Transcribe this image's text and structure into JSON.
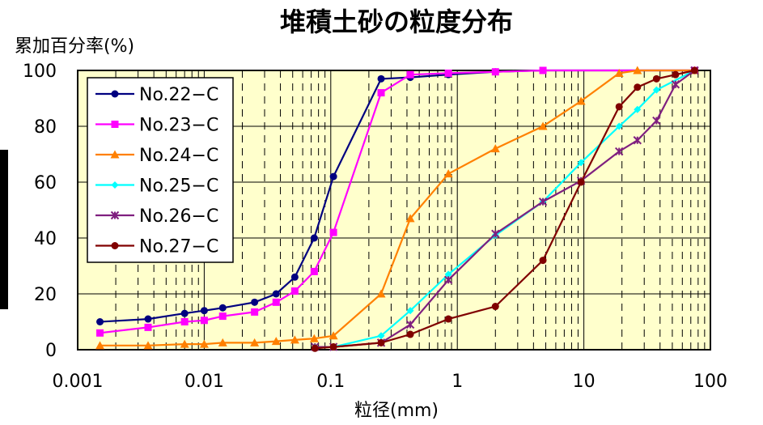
{
  "chart_data": {
    "type": "line",
    "title": "堆積土砂の粒度分布",
    "ylabel": "累加百分率(%)",
    "xlabel": "粒径(mm)",
    "x_scale": "log",
    "xlim": [
      0.001,
      100
    ],
    "ylim": [
      0,
      100
    ],
    "x_ticks": [
      "0.001",
      "0.01",
      "0.1",
      "1",
      "10",
      "100"
    ],
    "y_ticks": [
      "0",
      "20",
      "40",
      "60",
      "80",
      "100"
    ],
    "grid": true,
    "legend_position": "top-left",
    "plot_background": "#ffffcc",
    "series": [
      {
        "name": "No.22−C",
        "color": "#000080",
        "marker": "circle",
        "x": [
          0.0015,
          0.0036,
          0.007,
          0.01,
          0.014,
          0.025,
          0.037,
          0.052,
          0.074,
          0.105,
          0.25,
          0.425,
          0.85,
          2,
          4.75,
          75
        ],
        "y": [
          10,
          11,
          13,
          14,
          15,
          17,
          20,
          26,
          40,
          62,
          97,
          97.5,
          98.5,
          99.5,
          100,
          100
        ]
      },
      {
        "name": "No.23−C",
        "color": "#ff00ff",
        "marker": "square",
        "x": [
          0.0015,
          0.0036,
          0.007,
          0.01,
          0.014,
          0.025,
          0.037,
          0.052,
          0.074,
          0.105,
          0.25,
          0.425,
          0.85,
          2,
          4.75,
          75
        ],
        "y": [
          6,
          8,
          10,
          10.5,
          12,
          13.5,
          17,
          21,
          28,
          42,
          92,
          98.5,
          99,
          99.5,
          100,
          100
        ]
      },
      {
        "name": "No.24−C",
        "color": "#ff8000",
        "marker": "triangle",
        "x": [
          0.0015,
          0.0036,
          0.007,
          0.01,
          0.014,
          0.025,
          0.037,
          0.052,
          0.074,
          0.105,
          0.25,
          0.425,
          0.85,
          2,
          4.75,
          9.5,
          19,
          26.5,
          75
        ],
        "y": [
          1.5,
          1.5,
          2,
          2,
          2.5,
          2.5,
          3,
          3.5,
          4,
          5,
          20,
          47,
          63,
          72,
          80,
          89,
          99,
          100,
          100
        ]
      },
      {
        "name": "No.25−C",
        "color": "#00ffff",
        "marker": "diamond",
        "x": [
          0.075,
          0.105,
          0.25,
          0.425,
          0.85,
          2,
          4.75,
          9.5,
          19,
          26.5,
          37.5,
          75
        ],
        "y": [
          1,
          1,
          5,
          14,
          27,
          41,
          53,
          67,
          80,
          86,
          93,
          100
        ]
      },
      {
        "name": "No.26−C",
        "color": "#7f1f7f",
        "marker": "x",
        "x": [
          0.075,
          0.105,
          0.25,
          0.425,
          0.85,
          2,
          4.75,
          9.5,
          19,
          26.5,
          37.5,
          53,
          75
        ],
        "y": [
          1,
          1,
          2.5,
          9,
          25,
          41.5,
          53,
          60.5,
          71,
          75,
          82,
          95,
          100
        ]
      },
      {
        "name": "No.27−C",
        "color": "#800000",
        "marker": "circle",
        "x": [
          0.075,
          0.105,
          0.25,
          0.425,
          0.85,
          2,
          4.75,
          9.5,
          19,
          26.5,
          37.5,
          53,
          75
        ],
        "y": [
          0.5,
          1,
          2.5,
          5.5,
          11,
          15.5,
          32,
          60,
          87,
          94,
          97,
          98.5,
          100
        ]
      }
    ]
  }
}
